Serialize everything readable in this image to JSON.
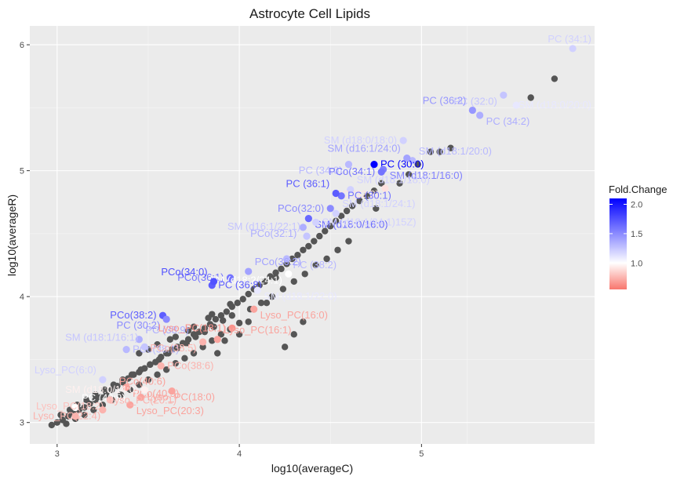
{
  "chart_data": {
    "type": "scatter",
    "title": "Astrocyte Cell Lipids",
    "xlabel": "log10(averageC)",
    "ylabel": "log10(averageR)",
    "xlim": [
      2.85,
      5.95
    ],
    "ylim": [
      2.83,
      6.15
    ],
    "x_ticks": [
      3,
      4,
      5
    ],
    "y_ticks": [
      3,
      4,
      5,
      6
    ],
    "grid": true,
    "legend": {
      "title": "Fold.Change",
      "position": "right",
      "ticks": [
        1.0,
        1.5,
        2.0
      ],
      "range": [
        0.55,
        2.1
      ],
      "colors": {
        "low": "#f8766d",
        "mid": "#ffffff",
        "high": "#0000ff"
      }
    },
    "background_points": [
      [
        2.97,
        2.98
      ],
      [
        3.0,
        3.0
      ],
      [
        3.03,
        3.02
      ],
      [
        3.06,
        3.05
      ],
      [
        3.09,
        3.07
      ],
      [
        3.12,
        3.1
      ],
      [
        3.15,
        3.12
      ],
      [
        3.18,
        3.15
      ],
      [
        3.21,
        3.18
      ],
      [
        3.24,
        3.2
      ],
      [
        3.27,
        3.22
      ],
      [
        3.3,
        3.26
      ],
      [
        3.33,
        3.29
      ],
      [
        3.36,
        3.32
      ],
      [
        3.39,
        3.35
      ],
      [
        3.42,
        3.38
      ],
      [
        3.45,
        3.4
      ],
      [
        3.48,
        3.43
      ],
      [
        3.51,
        3.46
      ],
      [
        3.54,
        3.48
      ],
      [
        3.57,
        3.52
      ],
      [
        3.6,
        3.55
      ],
      [
        3.63,
        3.58
      ],
      [
        3.66,
        3.6
      ],
      [
        3.69,
        3.63
      ],
      [
        3.72,
        3.66
      ],
      [
        3.75,
        3.7
      ],
      [
        3.78,
        3.72
      ],
      [
        3.81,
        3.75
      ],
      [
        3.84,
        3.78
      ],
      [
        3.87,
        3.82
      ],
      [
        3.9,
        3.85
      ],
      [
        3.93,
        3.88
      ],
      [
        3.96,
        3.92
      ],
      [
        3.99,
        3.95
      ],
      [
        4.02,
        3.98
      ],
      [
        4.05,
        4.02
      ],
      [
        4.08,
        4.06
      ],
      [
        4.11,
        4.09
      ],
      [
        4.14,
        4.12
      ],
      [
        4.17,
        4.16
      ],
      [
        4.2,
        4.19
      ],
      [
        4.23,
        4.22
      ],
      [
        4.26,
        4.26
      ],
      [
        4.29,
        4.3
      ],
      [
        4.32,
        4.33
      ],
      [
        4.35,
        4.37
      ],
      [
        4.38,
        4.4
      ],
      [
        4.41,
        4.44
      ],
      [
        4.44,
        4.48
      ],
      [
        4.47,
        4.52
      ],
      [
        4.5,
        4.56
      ],
      [
        4.53,
        4.6
      ],
      [
        4.56,
        4.64
      ],
      [
        4.59,
        4.68
      ],
      [
        4.62,
        4.72
      ],
      [
        4.66,
        4.76
      ],
      [
        4.7,
        4.8
      ],
      [
        4.74,
        4.84
      ],
      [
        4.78,
        4.9
      ],
      [
        3.02,
        3.06
      ],
      [
        3.07,
        3.1
      ],
      [
        3.11,
        3.14
      ],
      [
        3.16,
        3.18
      ],
      [
        3.21,
        3.22
      ],
      [
        3.26,
        3.26
      ],
      [
        3.31,
        3.3
      ],
      [
        3.36,
        3.34
      ],
      [
        3.41,
        3.38
      ],
      [
        3.46,
        3.42
      ],
      [
        3.51,
        3.46
      ],
      [
        3.56,
        3.5
      ],
      [
        3.61,
        3.55
      ],
      [
        3.66,
        3.59
      ],
      [
        3.71,
        3.63
      ],
      [
        3.76,
        3.68
      ],
      [
        3.81,
        3.72
      ],
      [
        3.86,
        3.76
      ],
      [
        3.91,
        3.81
      ],
      [
        3.96,
        3.85
      ],
      [
        3.05,
        2.99
      ],
      [
        3.1,
        3.03
      ],
      [
        3.15,
        3.06
      ],
      [
        3.2,
        3.1
      ],
      [
        3.25,
        3.14
      ],
      [
        3.3,
        3.18
      ],
      [
        3.35,
        3.22
      ],
      [
        3.4,
        3.26
      ],
      [
        3.45,
        3.3
      ],
      [
        3.5,
        3.34
      ],
      [
        3.55,
        3.38
      ],
      [
        3.6,
        3.42
      ],
      [
        3.65,
        3.47
      ],
      [
        3.7,
        3.51
      ],
      [
        3.75,
        3.55
      ],
      [
        3.8,
        3.6
      ],
      [
        3.85,
        3.65
      ],
      [
        3.9,
        3.7
      ],
      [
        3.95,
        3.74
      ],
      [
        4.0,
        3.79
      ],
      [
        4.06,
        3.9
      ],
      [
        4.12,
        3.95
      ],
      [
        4.18,
        4.0
      ],
      [
        4.24,
        4.06
      ],
      [
        4.3,
        4.12
      ],
      [
        4.36,
        4.18
      ],
      [
        4.42,
        4.25
      ],
      [
        4.48,
        4.3
      ],
      [
        4.54,
        4.37
      ],
      [
        4.6,
        4.44
      ],
      [
        3.45,
        3.55
      ],
      [
        3.55,
        3.62
      ],
      [
        3.65,
        3.68
      ],
      [
        3.75,
        3.76
      ],
      [
        3.85,
        3.86
      ],
      [
        3.95,
        3.94
      ],
      [
        3.5,
        3.58
      ],
      [
        3.62,
        3.66
      ],
      [
        3.72,
        3.73
      ],
      [
        3.83,
        3.83
      ],
      [
        4.75,
        4.7
      ],
      [
        4.88,
        4.9
      ],
      [
        4.93,
        4.97
      ],
      [
        5.05,
        5.15
      ],
      [
        5.1,
        5.15
      ],
      [
        5.16,
        5.18
      ],
      [
        5.52,
        5.52
      ],
      [
        5.6,
        5.58
      ],
      [
        5.73,
        5.73
      ],
      [
        4.98,
        5.05
      ],
      [
        4.25,
        3.6
      ],
      [
        4.3,
        3.7
      ],
      [
        4.35,
        3.8
      ],
      [
        4.2,
        4.15
      ],
      [
        4.1,
        4.05
      ],
      [
        4.15,
        3.95
      ],
      [
        3.88,
        3.55
      ],
      [
        3.92,
        3.65
      ],
      [
        4.0,
        3.7
      ],
      [
        4.05,
        3.8
      ]
    ],
    "labeled_points": [
      {
        "label": "PC (34:1)",
        "x": 5.83,
        "y": 5.97,
        "fc": 1.2
      },
      {
        "label": "PC (32:0)",
        "x": 5.45,
        "y": 5.6,
        "fc": 1.25
      },
      {
        "label": "SM (d18:0/20:0)",
        "x": 5.52,
        "y": 5.52,
        "fc": 1.1
      },
      {
        "label": "PC (36:2)",
        "x": 5.28,
        "y": 5.48,
        "fc": 1.45
      },
      {
        "label": "PC (34:2)",
        "x": 5.32,
        "y": 5.44,
        "fc": 1.35
      },
      {
        "label": "SM (d18:0/18:0)",
        "x": 4.9,
        "y": 5.24,
        "fc": 1.2
      },
      {
        "label": "SM (d18:1/20:0)",
        "x": 4.95,
        "y": 5.08,
        "fc": 1.3
      },
      {
        "label": "PC (34:0)",
        "x": 4.6,
        "y": 5.05,
        "fc": 1.3
      },
      {
        "label": "PC (30:0)",
        "x": 4.74,
        "y": 5.05,
        "fc": 2.1
      },
      {
        "label": "SM (d16:1/24:0)",
        "x": 4.92,
        "y": 5.1,
        "fc": 1.4
      },
      {
        "label": "SM (d18:1/16:0)",
        "x": 4.79,
        "y": 5.01,
        "fc": 1.55
      },
      {
        "label": "PCo(34:1)",
        "x": 4.78,
        "y": 4.99,
        "fc": 1.6
      },
      {
        "label": "SM (d18:1/18:0)",
        "x": 4.61,
        "y": 4.85,
        "fc": 1.2
      },
      {
        "label": "PC (32:2)",
        "x": 4.8,
        "y": 4.86,
        "fc": 0.9
      },
      {
        "label": "PC (30:1)",
        "x": 4.56,
        "y": 4.8,
        "fc": 1.6
      },
      {
        "label": "PC (36:1)",
        "x": 4.53,
        "y": 4.82,
        "fc": 1.7
      },
      {
        "label": "SM (d18:0/16:0)",
        "x": 4.38,
        "y": 4.62,
        "fc": 1.65
      },
      {
        "label": "PCo(32:0)",
        "x": 4.5,
        "y": 4.7,
        "fc": 1.5
      },
      {
        "label": "SM (d18:1/24:1)",
        "x": 4.53,
        "y": 4.66,
        "fc": 1.2
      },
      {
        "label": "PCo(32:1)",
        "x": 4.35,
        "y": 4.55,
        "fc": 1.35
      },
      {
        "label": "SM (d18:1/24:1)15Z)",
        "x": 4.42,
        "y": 4.59,
        "fc": 1.2
      },
      {
        "label": "SM (d16:1/22:1)",
        "x": 4.37,
        "y": 4.48,
        "fc": 1.25
      },
      {
        "label": "PC (38:2)",
        "x": 4.26,
        "y": 4.3,
        "fc": 1.3
      },
      {
        "label": "PCo(36:1)",
        "x": 3.95,
        "y": 4.15,
        "fc": 1.6
      },
      {
        "label": "PCo(36:2)",
        "x": 4.05,
        "y": 4.2,
        "fc": 1.4
      },
      {
        "label": "SM (d18:2/24:1)",
        "x": 4.27,
        "y": 4.18,
        "fc": 1.0
      },
      {
        "label": "PC (36:8)",
        "x": 3.85,
        "y": 4.09,
        "fc": 1.7
      },
      {
        "label": "PCo(34:0)",
        "x": 3.86,
        "y": 4.12,
        "fc": 1.75
      },
      {
        "label": "SM (d18:1/22:0)",
        "x": 4.1,
        "y": 4.05,
        "fc": 1.1
      },
      {
        "label": "PCo(38:2)",
        "x": 3.58,
        "y": 3.85,
        "fc": 1.7
      },
      {
        "label": "PC (38:9)",
        "x": 3.45,
        "y": 3.66,
        "fc": 1.35
      },
      {
        "label": "PC (30:2)",
        "x": 3.6,
        "y": 3.82,
        "fc": 1.5
      },
      {
        "label": "PCo(38:1)",
        "x": 3.38,
        "y": 3.58,
        "fc": 1.3
      },
      {
        "label": "SM (d18:1/16:1)",
        "x": 3.48,
        "y": 3.6,
        "fc": 1.25
      },
      {
        "label": "Lyso_PC(16:0)",
        "x": 4.08,
        "y": 3.9,
        "fc": 0.7
      },
      {
        "label": "Lyso_PC(18:1)",
        "x": 3.96,
        "y": 3.75,
        "fc": 0.65
      },
      {
        "label": "Lyso_PC(16:1)",
        "x": 3.88,
        "y": 3.66,
        "fc": 0.7
      },
      {
        "label": "PCo(38:5)",
        "x": 3.8,
        "y": 3.64,
        "fc": 0.75
      },
      {
        "label": "PCo(38:6)",
        "x": 3.57,
        "y": 3.45,
        "fc": 0.75
      },
      {
        "label": "Lyso_PC(6:0)",
        "x": 3.25,
        "y": 3.34,
        "fc": 1.2
      },
      {
        "label": "PCo(40:5)",
        "x": 3.38,
        "y": 3.28,
        "fc": 0.7
      },
      {
        "label": "SM (d18:0/14:0)",
        "x": 3.48,
        "y": 3.26,
        "fc": 0.95
      },
      {
        "label": "PC (40:9)",
        "x": 3.1,
        "y": 3.12,
        "fc": 1.0
      },
      {
        "label": "Lyso_PC(18:2)",
        "x": 3.29,
        "y": 3.18,
        "fc": 0.8
      },
      {
        "label": "Lyso_PC(18:0)",
        "x": 3.46,
        "y": 3.2,
        "fc": 0.7
      },
      {
        "label": "PCo(40:6)",
        "x": 3.63,
        "y": 3.25,
        "fc": 0.7
      },
      {
        "label": "Lyso_PC(20:3)",
        "x": 3.4,
        "y": 3.14,
        "fc": 0.7
      },
      {
        "label": "Lyso_PC(22:4)",
        "x": 3.1,
        "y": 3.05,
        "fc": 0.75
      },
      {
        "label": "Lyso_PC(20:1)",
        "x": 3.25,
        "y": 3.1,
        "fc": 0.75
      }
    ]
  }
}
